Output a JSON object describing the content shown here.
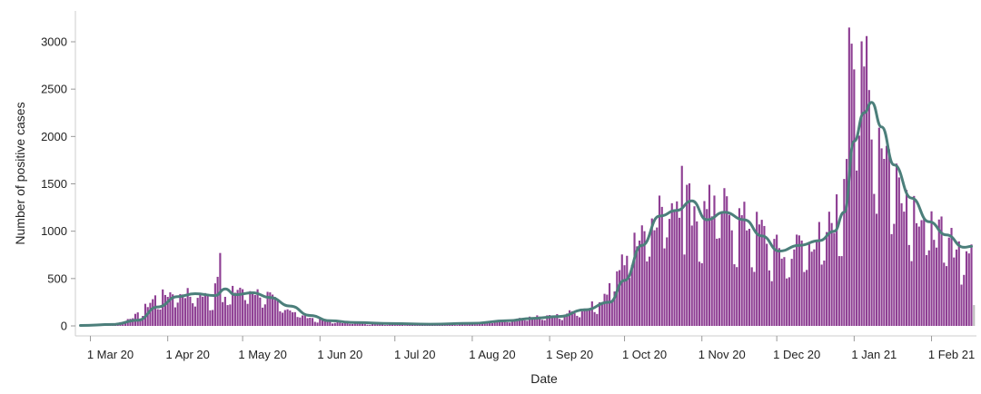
{
  "chart_data": {
    "type": "bar",
    "xlabel": "Date",
    "ylabel": "Number of positive cases",
    "ylim": [
      0,
      3200
    ],
    "xlim": [
      "2020-02-24",
      "2021-02-19"
    ],
    "y_ticks": [
      0,
      500,
      1000,
      1500,
      2000,
      2500,
      3000
    ],
    "x_ticks": [
      {
        "date": "2020-03-01",
        "label": "1 Mar 20"
      },
      {
        "date": "2020-04-01",
        "label": "1 Apr 20"
      },
      {
        "date": "2020-05-01",
        "label": "1 May 20"
      },
      {
        "date": "2020-06-01",
        "label": "1 Jun 20"
      },
      {
        "date": "2020-07-01",
        "label": "1 Jul 20"
      },
      {
        "date": "2020-08-01",
        "label": "1 Aug 20"
      },
      {
        "date": "2020-09-01",
        "label": "1 Sep 20"
      },
      {
        "date": "2020-10-01",
        "label": "1 Oct 20"
      },
      {
        "date": "2020-11-01",
        "label": "1 Nov 20"
      },
      {
        "date": "2020-12-01",
        "label": "1 Dec 20"
      },
      {
        "date": "2021-01-01",
        "label": "1 Jan 21"
      },
      {
        "date": "2021-02-01",
        "label": "1 Feb 21"
      }
    ],
    "grid": false,
    "colors": {
      "bars": "#8e3e93",
      "bars_incomplete": "#bdbdbd",
      "line": "#4c7f7b"
    },
    "daily_key_points": [
      [
        "2020-02-26",
        2
      ],
      [
        "2020-03-05",
        5
      ],
      [
        "2020-03-12",
        25
      ],
      [
        "2020-03-20",
        120
      ],
      [
        "2020-03-27",
        300
      ],
      [
        "2020-04-04",
        360
      ],
      [
        "2020-04-12",
        330
      ],
      [
        "2020-04-19",
        300
      ],
      [
        "2020-04-22",
        760
      ],
      [
        "2020-04-23",
        300
      ],
      [
        "2020-04-30",
        400
      ],
      [
        "2020-05-10",
        330
      ],
      [
        "2020-05-20",
        170
      ],
      [
        "2020-05-30",
        70
      ],
      [
        "2020-06-10",
        35
      ],
      [
        "2020-06-25",
        20
      ],
      [
        "2020-07-10",
        12
      ],
      [
        "2020-07-25",
        15
      ],
      [
        "2020-08-01",
        30
      ],
      [
        "2020-08-15",
        55
      ],
      [
        "2020-08-25",
        90
      ],
      [
        "2020-09-05",
        110
      ],
      [
        "2020-09-15",
        180
      ],
      [
        "2020-09-22",
        270
      ],
      [
        "2020-09-28",
        550
      ],
      [
        "2020-10-05",
        950
      ],
      [
        "2020-10-12",
        1200
      ],
      [
        "2020-10-20",
        1330
      ],
      [
        "2020-10-25",
        1400
      ],
      [
        "2020-10-31",
        1150
      ],
      [
        "2020-11-06",
        1300
      ],
      [
        "2020-11-15",
        1150
      ],
      [
        "2020-11-25",
        1000
      ],
      [
        "2020-12-03",
        750
      ],
      [
        "2020-12-12",
        900
      ],
      [
        "2020-12-20",
        950
      ],
      [
        "2020-12-27",
        1300
      ],
      [
        "2020-12-31",
        2900
      ],
      [
        "2021-01-05",
        2600
      ],
      [
        "2021-01-12",
        2000
      ],
      [
        "2021-01-18",
        1600
      ],
      [
        "2021-01-25",
        1300
      ],
      [
        "2021-02-01",
        1050
      ],
      [
        "2021-02-08",
        900
      ],
      [
        "2021-02-14",
        820
      ]
    ],
    "notable_bars": [
      [
        "2020-04-22",
        770
      ],
      [
        "2020-12-30",
        3150
      ],
      [
        "2020-12-31",
        2980
      ],
      [
        "2021-01-06",
        3060
      ],
      [
        "2020-10-24",
        1690
      ],
      [
        "2020-11-04",
        1490
      ],
      [
        "2021-02-17",
        860
      ],
      [
        "2021-02-18",
        220
      ]
    ],
    "incomplete_last_bar": [
      "2021-02-18",
      220
    ],
    "rolling_average": [
      [
        "2020-02-26",
        5
      ],
      [
        "2020-03-10",
        15
      ],
      [
        "2020-03-20",
        60
      ],
      [
        "2020-03-28",
        200
      ],
      [
        "2020-04-05",
        310
      ],
      [
        "2020-04-12",
        340
      ],
      [
        "2020-04-20",
        320
      ],
      [
        "2020-04-24",
        390
      ],
      [
        "2020-04-28",
        330
      ],
      [
        "2020-05-05",
        350
      ],
      [
        "2020-05-12",
        300
      ],
      [
        "2020-05-20",
        210
      ],
      [
        "2020-05-28",
        110
      ],
      [
        "2020-06-05",
        55
      ],
      [
        "2020-06-15",
        35
      ],
      [
        "2020-06-30",
        25
      ],
      [
        "2020-07-15",
        18
      ],
      [
        "2020-08-01",
        28
      ],
      [
        "2020-08-15",
        55
      ],
      [
        "2020-08-25",
        80
      ],
      [
        "2020-09-05",
        100
      ],
      [
        "2020-09-15",
        170
      ],
      [
        "2020-09-25",
        250
      ],
      [
        "2020-10-01",
        480
      ],
      [
        "2020-10-08",
        850
      ],
      [
        "2020-10-15",
        1160
      ],
      [
        "2020-10-22",
        1220
      ],
      [
        "2020-10-28",
        1320
      ],
      [
        "2020-11-03",
        1120
      ],
      [
        "2020-11-10",
        1200
      ],
      [
        "2020-11-18",
        1120
      ],
      [
        "2020-11-25",
        950
      ],
      [
        "2020-12-02",
        790
      ],
      [
        "2020-12-10",
        850
      ],
      [
        "2020-12-18",
        900
      ],
      [
        "2020-12-24",
        1000
      ],
      [
        "2020-12-28",
        1200
      ],
      [
        "2021-01-01",
        1950
      ],
      [
        "2021-01-05",
        2250
      ],
      [
        "2021-01-08",
        2360
      ],
      [
        "2021-01-12",
        2100
      ],
      [
        "2021-01-17",
        1700
      ],
      [
        "2021-01-24",
        1350
      ],
      [
        "2021-01-31",
        1100
      ],
      [
        "2021-02-07",
        960
      ],
      [
        "2021-02-14",
        830
      ],
      [
        "2021-02-17",
        840
      ]
    ]
  }
}
